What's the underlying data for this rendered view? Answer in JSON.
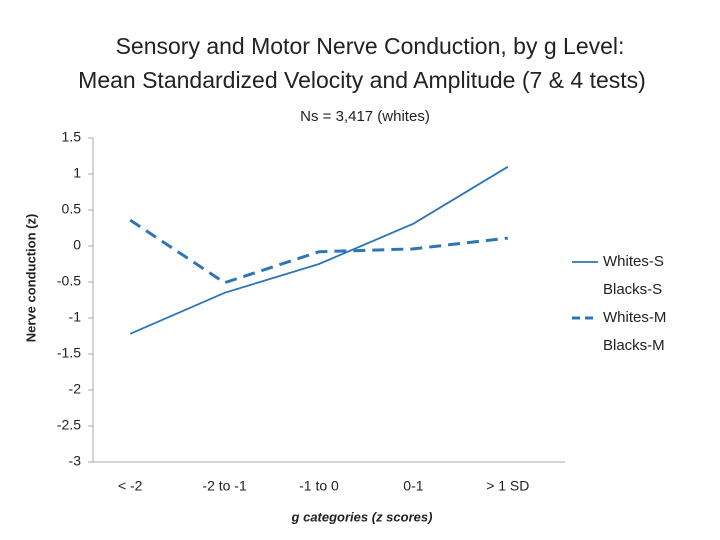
{
  "chart_data": {
    "type": "line",
    "title": [
      "Sensory and Motor Nerve Conduction, by g Level:",
      "Mean Standardized Velocity and Amplitude (7 & 4 tests)"
    ],
    "subtitle": "Ns = 3,417 (whites)",
    "y_label": "Nerve conduction (z)",
    "x_label": "g categories (z scores)",
    "categories": [
      "< -2",
      "-2 to -1",
      "-1 to 0",
      "0-1",
      "> 1 SD"
    ],
    "series": [
      {
        "name": "Whites-S",
        "color": "#2e75b6",
        "style": "solid",
        "values": [
          -1.22,
          -0.65,
          -0.25,
          0.31,
          1.1
        ]
      },
      {
        "name": "Blacks-S",
        "color": null,
        "style": "solid",
        "values": [
          null,
          null,
          null,
          null,
          null
        ]
      },
      {
        "name": "Whites-M",
        "color": "#2e75b6",
        "style": "dashed",
        "values": [
          0.36,
          -0.51,
          -0.08,
          -0.04,
          0.11
        ]
      },
      {
        "name": "Blacks-M",
        "color": null,
        "style": "dashed",
        "values": [
          null,
          null,
          null,
          null,
          null
        ]
      }
    ],
    "ylim": [
      -3,
      1.5
    ],
    "yticks": [
      -3,
      -2.5,
      -2,
      -1.5,
      -1,
      -0.5,
      0,
      0.5,
      1,
      1.5
    ],
    "grid": false,
    "legend": "right"
  }
}
